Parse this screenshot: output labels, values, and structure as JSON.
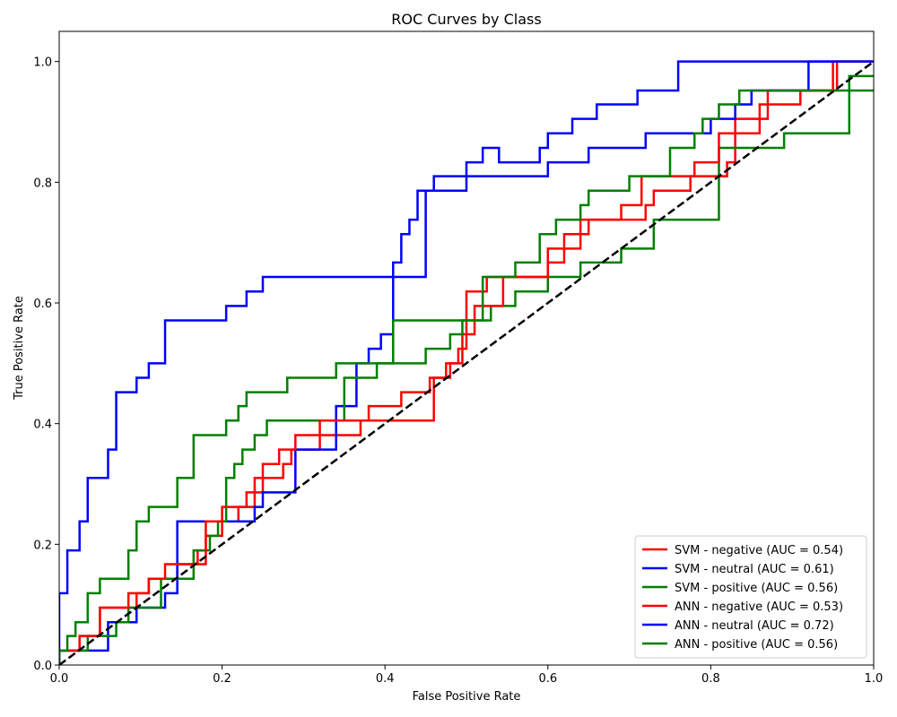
{
  "chart_data": {
    "type": "line",
    "title": "ROC Curves by Class",
    "xlabel": "False Positive Rate",
    "ylabel": "True Positive Rate",
    "xlim": [
      0.0,
      1.0
    ],
    "ylim": [
      0.0,
      1.05
    ],
    "xticks": [
      "0.0",
      "0.2",
      "0.4",
      "0.6",
      "0.8",
      "1.0"
    ],
    "yticks": [
      "0.0",
      "0.2",
      "0.4",
      "0.6",
      "0.8",
      "1.0"
    ],
    "grid": false,
    "legend_position": "lower-right",
    "diagonal": {
      "x": [
        0,
        1
      ],
      "y": [
        0,
        1
      ],
      "color": "#000000",
      "style": "dashed"
    },
    "series": [
      {
        "name": "SVM - negative (AUC = 0.54)",
        "color": "#ff0000",
        "x": [
          0,
          0,
          0.025,
          0.025,
          0.05,
          0.05,
          0.095,
          0.095,
          0.11,
          0.11,
          0.145,
          0.145,
          0.17,
          0.17,
          0.18,
          0.18,
          0.2,
          0.2,
          0.22,
          0.22,
          0.24,
          0.24,
          0.25,
          0.25,
          0.275,
          0.275,
          0.285,
          0.285,
          0.32,
          0.32,
          0.37,
          0.37,
          0.46,
          0.46,
          0.475,
          0.475,
          0.49,
          0.49,
          0.5,
          0.5,
          0.525,
          0.525,
          0.6,
          0.6,
          0.62,
          0.62,
          0.65,
          0.65,
          0.72,
          0.72,
          0.73,
          0.73,
          0.775,
          0.775,
          0.82,
          0.82,
          0.83,
          0.83,
          0.87,
          0.87,
          0.95,
          0.95,
          1
        ],
        "y": [
          0,
          0.024,
          0.024,
          0.048,
          0.048,
          0.095,
          0.095,
          0.119,
          0.119,
          0.143,
          0.143,
          0.167,
          0.167,
          0.19,
          0.19,
          0.214,
          0.214,
          0.238,
          0.238,
          0.262,
          0.262,
          0.286,
          0.286,
          0.31,
          0.31,
          0.333,
          0.333,
          0.357,
          0.357,
          0.381,
          0.381,
          0.405,
          0.405,
          0.476,
          0.476,
          0.5,
          0.5,
          0.524,
          0.524,
          0.619,
          0.619,
          0.643,
          0.643,
          0.667,
          0.667,
          0.714,
          0.714,
          0.738,
          0.738,
          0.762,
          0.762,
          0.786,
          0.786,
          0.81,
          0.81,
          0.833,
          0.833,
          0.905,
          0.905,
          0.952,
          0.952,
          1.0,
          1.0
        ]
      },
      {
        "name": "SVM - neutral (AUC = 0.61)",
        "color": "#0000ff",
        "x": [
          0,
          0,
          0.06,
          0.06,
          0.095,
          0.095,
          0.13,
          0.13,
          0.145,
          0.145,
          0.24,
          0.24,
          0.25,
          0.25,
          0.29,
          0.29,
          0.34,
          0.34,
          0.365,
          0.365,
          0.38,
          0.38,
          0.395,
          0.395,
          0.41,
          0.41,
          0.45,
          0.45,
          0.5,
          0.5,
          0.6,
          0.6,
          0.65,
          0.65,
          0.72,
          0.72,
          0.8,
          0.8,
          0.83,
          0.83,
          0.85,
          0.85,
          0.92,
          0.92,
          1
        ],
        "y": [
          0,
          0.024,
          0.024,
          0.071,
          0.071,
          0.095,
          0.095,
          0.119,
          0.119,
          0.238,
          0.238,
          0.262,
          0.262,
          0.286,
          0.286,
          0.357,
          0.357,
          0.429,
          0.429,
          0.5,
          0.5,
          0.524,
          0.524,
          0.548,
          0.548,
          0.643,
          0.643,
          0.786,
          0.786,
          0.81,
          0.81,
          0.833,
          0.833,
          0.857,
          0.857,
          0.881,
          0.881,
          0.905,
          0.905,
          0.929,
          0.929,
          0.952,
          0.952,
          1.0,
          1.0
        ]
      },
      {
        "name": "SVM - positive (AUC = 0.56)",
        "color": "#008000",
        "x": [
          0,
          0,
          0.035,
          0.035,
          0.07,
          0.07,
          0.085,
          0.085,
          0.125,
          0.125,
          0.165,
          0.165,
          0.185,
          0.185,
          0.195,
          0.195,
          0.205,
          0.205,
          0.215,
          0.215,
          0.225,
          0.225,
          0.24,
          0.24,
          0.255,
          0.255,
          0.35,
          0.35,
          0.39,
          0.39,
          0.41,
          0.41,
          0.53,
          0.53,
          0.56,
          0.56,
          0.6,
          0.6,
          0.64,
          0.64,
          0.69,
          0.69,
          0.73,
          0.73,
          0.81,
          0.81,
          0.89,
          0.89,
          0.97,
          0.97,
          1
        ],
        "y": [
          0,
          0.024,
          0.024,
          0.048,
          0.048,
          0.071,
          0.071,
          0.095,
          0.095,
          0.143,
          0.143,
          0.19,
          0.19,
          0.214,
          0.214,
          0.238,
          0.238,
          0.31,
          0.31,
          0.333,
          0.333,
          0.357,
          0.357,
          0.381,
          0.381,
          0.405,
          0.405,
          0.476,
          0.476,
          0.5,
          0.5,
          0.571,
          0.571,
          0.595,
          0.595,
          0.619,
          0.619,
          0.643,
          0.643,
          0.667,
          0.667,
          0.69,
          0.69,
          0.738,
          0.738,
          0.857,
          0.857,
          0.881,
          0.881,
          0.976,
          0.976
        ]
      },
      {
        "name": "ANN - negative (AUC = 0.53)",
        "color": "#ff0000",
        "x": [
          0,
          0,
          0.025,
          0.025,
          0.05,
          0.05,
          0.085,
          0.085,
          0.11,
          0.11,
          0.13,
          0.13,
          0.18,
          0.18,
          0.2,
          0.2,
          0.23,
          0.23,
          0.24,
          0.24,
          0.25,
          0.25,
          0.27,
          0.27,
          0.29,
          0.29,
          0.32,
          0.32,
          0.38,
          0.38,
          0.42,
          0.42,
          0.455,
          0.455,
          0.48,
          0.48,
          0.495,
          0.495,
          0.51,
          0.51,
          0.545,
          0.545,
          0.6,
          0.6,
          0.64,
          0.64,
          0.69,
          0.69,
          0.715,
          0.715,
          0.78,
          0.78,
          0.81,
          0.81,
          0.86,
          0.86,
          0.91,
          0.91,
          0.955,
          0.955,
          1
        ],
        "y": [
          0,
          0.024,
          0.024,
          0.048,
          0.048,
          0.095,
          0.095,
          0.119,
          0.119,
          0.143,
          0.143,
          0.167,
          0.167,
          0.238,
          0.238,
          0.262,
          0.262,
          0.286,
          0.286,
          0.31,
          0.31,
          0.333,
          0.333,
          0.357,
          0.357,
          0.381,
          0.381,
          0.405,
          0.405,
          0.429,
          0.429,
          0.452,
          0.452,
          0.476,
          0.476,
          0.5,
          0.5,
          0.548,
          0.548,
          0.595,
          0.595,
          0.643,
          0.643,
          0.69,
          0.69,
          0.738,
          0.738,
          0.762,
          0.762,
          0.81,
          0.81,
          0.833,
          0.833,
          0.881,
          0.881,
          0.929,
          0.929,
          0.952,
          0.952,
          1.0,
          1.0
        ]
      },
      {
        "name": "ANN - neutral (AUC = 0.72)",
        "color": "#0000ff",
        "x": [
          0,
          0,
          0.01,
          0.01,
          0.025,
          0.025,
          0.035,
          0.035,
          0.06,
          0.06,
          0.07,
          0.07,
          0.095,
          0.095,
          0.11,
          0.11,
          0.13,
          0.13,
          0.205,
          0.205,
          0.23,
          0.23,
          0.25,
          0.25,
          0.41,
          0.41,
          0.42,
          0.42,
          0.43,
          0.43,
          0.44,
          0.44,
          0.46,
          0.46,
          0.5,
          0.5,
          0.52,
          0.52,
          0.54,
          0.54,
          0.59,
          0.59,
          0.6,
          0.6,
          0.63,
          0.63,
          0.66,
          0.66,
          0.71,
          0.71,
          0.76,
          0.76,
          0.94,
          0.94,
          1
        ],
        "y": [
          0,
          0.119,
          0.119,
          0.19,
          0.19,
          0.238,
          0.238,
          0.31,
          0.31,
          0.357,
          0.357,
          0.452,
          0.452,
          0.476,
          0.476,
          0.5,
          0.5,
          0.571,
          0.571,
          0.595,
          0.595,
          0.619,
          0.619,
          0.643,
          0.643,
          0.667,
          0.667,
          0.714,
          0.714,
          0.738,
          0.738,
          0.786,
          0.786,
          0.81,
          0.81,
          0.833,
          0.833,
          0.857,
          0.857,
          0.833,
          0.833,
          0.857,
          0.857,
          0.881,
          0.881,
          0.905,
          0.905,
          0.929,
          0.929,
          0.952,
          0.952,
          1.0,
          1.0,
          1.0,
          1.0
        ]
      },
      {
        "name": "ANN - positive (AUC = 0.56)",
        "color": "#008000",
        "x": [
          0,
          0,
          0.01,
          0.01,
          0.02,
          0.02,
          0.035,
          0.035,
          0.05,
          0.05,
          0.085,
          0.085,
          0.095,
          0.095,
          0.11,
          0.11,
          0.145,
          0.145,
          0.165,
          0.165,
          0.205,
          0.205,
          0.22,
          0.22,
          0.23,
          0.23,
          0.28,
          0.28,
          0.34,
          0.34,
          0.35,
          0.35,
          0.45,
          0.45,
          0.48,
          0.48,
          0.495,
          0.495,
          0.52,
          0.52,
          0.56,
          0.56,
          0.59,
          0.59,
          0.61,
          0.61,
          0.64,
          0.64,
          0.65,
          0.65,
          0.7,
          0.7,
          0.75,
          0.75,
          0.78,
          0.78,
          0.79,
          0.79,
          0.81,
          0.81,
          0.835,
          0.835,
          0.845,
          0.845,
          1
        ],
        "y": [
          0,
          0.024,
          0.024,
          0.048,
          0.048,
          0.071,
          0.071,
          0.119,
          0.119,
          0.143,
          0.143,
          0.19,
          0.19,
          0.238,
          0.238,
          0.262,
          0.262,
          0.31,
          0.31,
          0.381,
          0.381,
          0.405,
          0.405,
          0.429,
          0.429,
          0.452,
          0.452,
          0.476,
          0.476,
          0.5,
          0.5,
          0.5,
          0.5,
          0.524,
          0.524,
          0.548,
          0.548,
          0.571,
          0.571,
          0.643,
          0.643,
          0.667,
          0.667,
          0.714,
          0.714,
          0.738,
          0.738,
          0.762,
          0.762,
          0.786,
          0.786,
          0.81,
          0.81,
          0.857,
          0.857,
          0.881,
          0.881,
          0.905,
          0.905,
          0.929,
          0.929,
          0.952,
          0.952,
          0.952,
          0.952
        ]
      }
    ]
  }
}
